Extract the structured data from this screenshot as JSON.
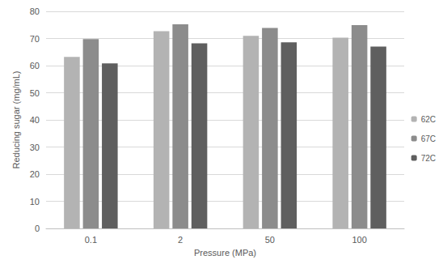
{
  "chart_data": {
    "type": "bar",
    "x_label": "Pressure (MPa)",
    "y_label": "Reducing sugar (mg/mL)",
    "categories": [
      "0.1",
      "2",
      "50",
      "100"
    ],
    "series": [
      {
        "name": "62C",
        "color": "#b3b3b3",
        "values": [
          63.2,
          72.7,
          71.0,
          70.3
        ]
      },
      {
        "name": "67C",
        "color": "#8c8c8c",
        "values": [
          69.8,
          75.2,
          73.9,
          74.9
        ]
      },
      {
        "name": "72C",
        "color": "#5f5f5f",
        "values": [
          60.8,
          68.2,
          68.6,
          67.0
        ]
      }
    ],
    "ylim": [
      0,
      80
    ],
    "yticks": [
      0,
      10,
      20,
      30,
      40,
      50,
      60,
      70,
      80
    ],
    "grid": true,
    "legend": "right"
  }
}
